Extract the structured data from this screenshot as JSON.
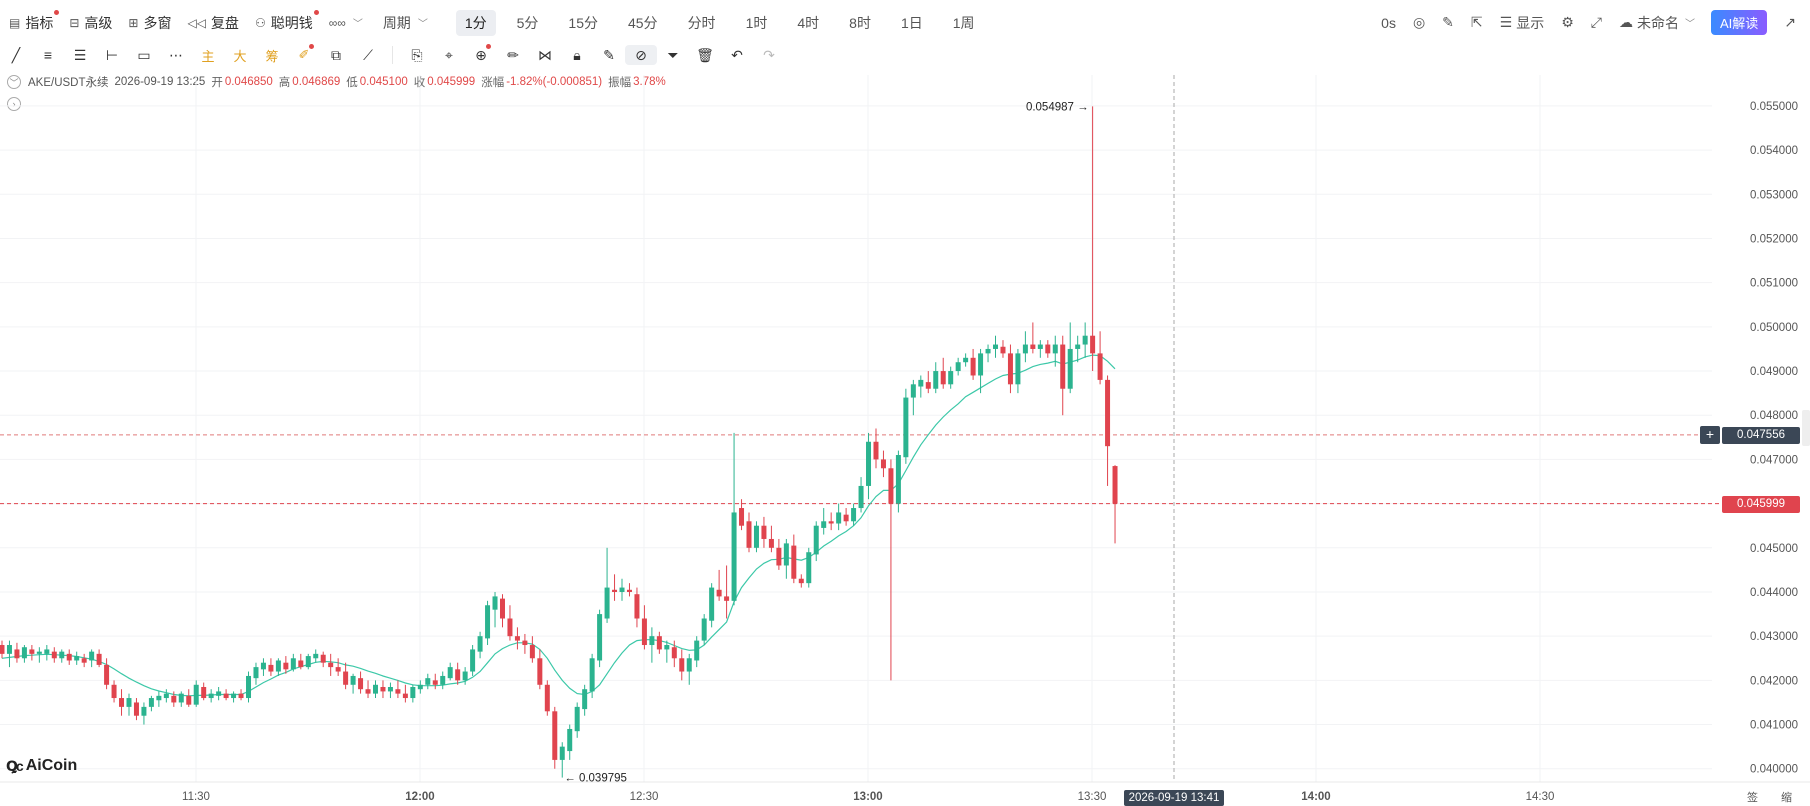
{
  "toolbar": {
    "items": [
      {
        "label": "指标",
        "icon": "indicator-icon",
        "dot": true
      },
      {
        "label": "高级",
        "icon": "advanced-icon",
        "dot": false
      },
      {
        "label": "多窗",
        "icon": "multi-window-icon",
        "dot": false
      },
      {
        "label": "复盘",
        "icon": "replay-icon",
        "dot": false
      },
      {
        "label": "聪明钱",
        "icon": "smart-money-icon",
        "dot": true
      }
    ],
    "chart_type_icon": "∞∞",
    "period_label": "周期",
    "intervals": [
      "1分",
      "5分",
      "15分",
      "45分",
      "分时",
      "1时",
      "4时",
      "8时",
      "1日",
      "1周"
    ],
    "active_interval": "1分",
    "right": {
      "countdown": "0s",
      "display_label": "显示",
      "layout_name": "未命名",
      "ai_button": "AI解读"
    }
  },
  "drawing_tools": [
    "trend-line",
    "parallel-lines",
    "multi-lines",
    "horizontal-line",
    "rectangle",
    "more-dots",
    "主",
    "大",
    "筹",
    "brush",
    "copy",
    "measure",
    "bookmark",
    "ruler",
    "zoom",
    "eraser",
    "pattern",
    "lock",
    "note",
    "magnet",
    "filter",
    "delete",
    "undo",
    "redo"
  ],
  "info": {
    "symbol": "AKE/USDT永续",
    "datetime": "2026-09-19 13:25",
    "open_label": "开",
    "open": "0.046850",
    "high_label": "高",
    "high": "0.046869",
    "low_label": "低",
    "low": "0.045100",
    "close_label": "收",
    "close": "0.045999",
    "change_label": "涨幅",
    "change": "-1.82%(-0.000851)",
    "amplitude_label": "振幅",
    "amplitude": "3.78%"
  },
  "chart_data": {
    "type": "candlestick",
    "y_range": [
      0.0397,
      0.0557
    ],
    "y_ticks": [
      "0.055000",
      "0.054000",
      "0.053000",
      "0.052000",
      "0.051000",
      "0.050000",
      "0.049000",
      "0.048000",
      "0.047000",
      "0.046000",
      "0.045000",
      "0.044000",
      "0.043000",
      "0.042000",
      "0.041000",
      "0.040000"
    ],
    "x_ticks": [
      "11:30",
      "12:00",
      "12:30",
      "13:00",
      "13:30",
      "14:00",
      "14:30"
    ],
    "max_annotation": "0.054987",
    "min_annotation": "0.039795",
    "crosshair_price": "0.047556",
    "crosshair_time": "2026-09-19 13:41",
    "last_price": "0.045999",
    "colors": {
      "up": "#2bb38f",
      "down": "#e0444e",
      "ma": "#3cc8a8"
    },
    "candles": [
      [
        0.0428,
        0.0429,
        0.0425,
        0.0426
      ],
      [
        0.0426,
        0.0429,
        0.0423,
        0.0428
      ],
      [
        0.0427,
        0.04285,
        0.0424,
        0.0425
      ],
      [
        0.0425,
        0.0428,
        0.0424,
        0.04275
      ],
      [
        0.0427,
        0.0428,
        0.04245,
        0.0426
      ],
      [
        0.0426,
        0.04275,
        0.0424,
        0.04265
      ],
      [
        0.0426,
        0.0428,
        0.04245,
        0.0427
      ],
      [
        0.04265,
        0.04275,
        0.0424,
        0.0425
      ],
      [
        0.0425,
        0.0427,
        0.0424,
        0.04265
      ],
      [
        0.0426,
        0.0427,
        0.04235,
        0.04245
      ],
      [
        0.04245,
        0.04265,
        0.04235,
        0.04255
      ],
      [
        0.0425,
        0.0426,
        0.0423,
        0.0424
      ],
      [
        0.04245,
        0.0427,
        0.0423,
        0.04265
      ],
      [
        0.0426,
        0.0427,
        0.0423,
        0.04235
      ],
      [
        0.04235,
        0.0425,
        0.0418,
        0.0419
      ],
      [
        0.0419,
        0.042,
        0.0415,
        0.0416
      ],
      [
        0.0416,
        0.0418,
        0.0412,
        0.0414
      ],
      [
        0.0414,
        0.0417,
        0.0412,
        0.0416
      ],
      [
        0.0415,
        0.0416,
        0.0411,
        0.0412
      ],
      [
        0.0412,
        0.0415,
        0.041,
        0.0414
      ],
      [
        0.0414,
        0.04165,
        0.0413,
        0.0416
      ],
      [
        0.04155,
        0.04175,
        0.0414,
        0.04165
      ],
      [
        0.0416,
        0.0418,
        0.0415,
        0.0417
      ],
      [
        0.04165,
        0.04175,
        0.0414,
        0.0415
      ],
      [
        0.0415,
        0.04175,
        0.0414,
        0.0417
      ],
      [
        0.04165,
        0.0418,
        0.0414,
        0.04145
      ],
      [
        0.04145,
        0.042,
        0.0414,
        0.0419
      ],
      [
        0.04185,
        0.04195,
        0.04155,
        0.0416
      ],
      [
        0.0416,
        0.0418,
        0.0415,
        0.0417
      ],
      [
        0.04165,
        0.04185,
        0.04155,
        0.04175
      ],
      [
        0.0417,
        0.0418,
        0.04155,
        0.0416
      ],
      [
        0.0416,
        0.04175,
        0.0415,
        0.0417
      ],
      [
        0.0417,
        0.0418,
        0.04155,
        0.0416
      ],
      [
        0.0416,
        0.0422,
        0.0415,
        0.0421
      ],
      [
        0.04205,
        0.0424,
        0.0419,
        0.0423
      ],
      [
        0.04225,
        0.0425,
        0.0421,
        0.0424
      ],
      [
        0.04235,
        0.0425,
        0.0421,
        0.0422
      ],
      [
        0.0422,
        0.0425,
        0.0421,
        0.04245
      ],
      [
        0.0424,
        0.04255,
        0.04215,
        0.04225
      ],
      [
        0.04225,
        0.0426,
        0.0422,
        0.0425
      ],
      [
        0.04245,
        0.0426,
        0.04225,
        0.0423
      ],
      [
        0.0423,
        0.0426,
        0.04225,
        0.04255
      ],
      [
        0.0425,
        0.0427,
        0.0424,
        0.0426
      ],
      [
        0.04258,
        0.04265,
        0.0423,
        0.0424
      ],
      [
        0.0424,
        0.0426,
        0.0421,
        0.0423
      ],
      [
        0.0423,
        0.0425,
        0.0421,
        0.0422
      ],
      [
        0.0422,
        0.0424,
        0.0418,
        0.0419
      ],
      [
        0.0419,
        0.04215,
        0.0417,
        0.0421
      ],
      [
        0.04205,
        0.0422,
        0.0417,
        0.0418
      ],
      [
        0.0418,
        0.042,
        0.0416,
        0.0417
      ],
      [
        0.0417,
        0.042,
        0.0416,
        0.0419
      ],
      [
        0.04185,
        0.042,
        0.0416,
        0.04175
      ],
      [
        0.04175,
        0.04195,
        0.0416,
        0.04185
      ],
      [
        0.0418,
        0.042,
        0.0416,
        0.0417
      ],
      [
        0.0417,
        0.0419,
        0.0415,
        0.0416
      ],
      [
        0.0416,
        0.0419,
        0.0415,
        0.04185
      ],
      [
        0.0418,
        0.042,
        0.0417,
        0.0419
      ],
      [
        0.0419,
        0.04215,
        0.0418,
        0.04205
      ],
      [
        0.042,
        0.04215,
        0.0418,
        0.0419
      ],
      [
        0.0419,
        0.0422,
        0.0418,
        0.0421
      ],
      [
        0.04205,
        0.0424,
        0.042,
        0.0423
      ],
      [
        0.04225,
        0.0424,
        0.0419,
        0.042
      ],
      [
        0.042,
        0.0423,
        0.0419,
        0.0422
      ],
      [
        0.0422,
        0.0428,
        0.0421,
        0.0427
      ],
      [
        0.04265,
        0.0431,
        0.0425,
        0.043
      ],
      [
        0.04295,
        0.0438,
        0.0428,
        0.0437
      ],
      [
        0.0436,
        0.044,
        0.0432,
        0.0439
      ],
      [
        0.04385,
        0.04395,
        0.0432,
        0.0434
      ],
      [
        0.0434,
        0.0437,
        0.0429,
        0.043
      ],
      [
        0.043,
        0.0432,
        0.0427,
        0.0429
      ],
      [
        0.0429,
        0.04305,
        0.0426,
        0.0428
      ],
      [
        0.0428,
        0.043,
        0.0424,
        0.0425
      ],
      [
        0.0425,
        0.0427,
        0.0418,
        0.0419
      ],
      [
        0.0419,
        0.042,
        0.0412,
        0.0413
      ],
      [
        0.0413,
        0.0414,
        0.04,
        0.0402
      ],
      [
        0.0402,
        0.0406,
        0.0398,
        0.0405
      ],
      [
        0.0404,
        0.041,
        0.0402,
        0.0409
      ],
      [
        0.04085,
        0.0415,
        0.0407,
        0.0414
      ],
      [
        0.04135,
        0.0419,
        0.0412,
        0.0418
      ],
      [
        0.04175,
        0.0426,
        0.0416,
        0.0425
      ],
      [
        0.04245,
        0.0436,
        0.0423,
        0.0435
      ],
      [
        0.0434,
        0.045,
        0.0433,
        0.0441
      ],
      [
        0.04405,
        0.0444,
        0.0438,
        0.044
      ],
      [
        0.044,
        0.0443,
        0.0438,
        0.0441
      ],
      [
        0.04405,
        0.0442,
        0.0439,
        0.044
      ],
      [
        0.04395,
        0.0441,
        0.0432,
        0.0434
      ],
      [
        0.0434,
        0.0437,
        0.0427,
        0.0428
      ],
      [
        0.0428,
        0.0432,
        0.0424,
        0.043
      ],
      [
        0.043,
        0.0431,
        0.0426,
        0.0427
      ],
      [
        0.0427,
        0.0429,
        0.0424,
        0.0428
      ],
      [
        0.04275,
        0.0429,
        0.0423,
        0.0425
      ],
      [
        0.0425,
        0.0427,
        0.042,
        0.0422
      ],
      [
        0.0422,
        0.0426,
        0.0419,
        0.0425
      ],
      [
        0.04245,
        0.043,
        0.0423,
        0.0429
      ],
      [
        0.0429,
        0.0435,
        0.0428,
        0.0434
      ],
      [
        0.04335,
        0.0442,
        0.0432,
        0.0441
      ],
      [
        0.04405,
        0.0445,
        0.0438,
        0.0439
      ],
      [
        0.0439,
        0.0446,
        0.0434,
        0.0438
      ],
      [
        0.0438,
        0.0476,
        0.0437,
        0.0458
      ],
      [
        0.0459,
        0.0461,
        0.0454,
        0.0455
      ],
      [
        0.0456,
        0.0458,
        0.0449,
        0.045
      ],
      [
        0.045,
        0.0456,
        0.0449,
        0.0455
      ],
      [
        0.0455,
        0.0457,
        0.045,
        0.0452
      ],
      [
        0.0452,
        0.0455,
        0.0449,
        0.045
      ],
      [
        0.045,
        0.0452,
        0.0445,
        0.0446
      ],
      [
        0.0446,
        0.0452,
        0.0443,
        0.0451
      ],
      [
        0.04505,
        0.0453,
        0.0442,
        0.0443
      ],
      [
        0.0443,
        0.0444,
        0.0441,
        0.0442
      ],
      [
        0.0442,
        0.045,
        0.0441,
        0.0449
      ],
      [
        0.04485,
        0.0456,
        0.0447,
        0.0455
      ],
      [
        0.04545,
        0.0459,
        0.0453,
        0.0456
      ],
      [
        0.0456,
        0.0458,
        0.0454,
        0.04555
      ],
      [
        0.04555,
        0.046,
        0.0454,
        0.0458
      ],
      [
        0.04575,
        0.0459,
        0.0455,
        0.0456
      ],
      [
        0.0456,
        0.046,
        0.0455,
        0.0459
      ],
      [
        0.0459,
        0.0466,
        0.0458,
        0.0464
      ],
      [
        0.0464,
        0.0476,
        0.0461,
        0.0474
      ],
      [
        0.0474,
        0.0477,
        0.0468,
        0.047
      ],
      [
        0.047,
        0.0472,
        0.0466,
        0.0468
      ],
      [
        0.0468,
        0.047,
        0.042,
        0.046
      ],
      [
        0.046,
        0.0472,
        0.0458,
        0.0471
      ],
      [
        0.04705,
        0.0486,
        0.0469,
        0.0484
      ],
      [
        0.0484,
        0.0488,
        0.048,
        0.0487
      ],
      [
        0.04865,
        0.0489,
        0.0484,
        0.0488
      ],
      [
        0.04875,
        0.049,
        0.0485,
        0.0486
      ],
      [
        0.0486,
        0.0492,
        0.0485,
        0.049
      ],
      [
        0.049,
        0.0493,
        0.0486,
        0.0487
      ],
      [
        0.0487,
        0.0491,
        0.0486,
        0.049
      ],
      [
        0.049,
        0.0493,
        0.0489,
        0.0492
      ],
      [
        0.0492,
        0.0494,
        0.0491,
        0.0493
      ],
      [
        0.0493,
        0.0495,
        0.0488,
        0.0489
      ],
      [
        0.0489,
        0.0495,
        0.0485,
        0.0494
      ],
      [
        0.0494,
        0.0496,
        0.0492,
        0.0495
      ],
      [
        0.0495,
        0.0498,
        0.0493,
        0.0496
      ],
      [
        0.04955,
        0.0497,
        0.0493,
        0.0494
      ],
      [
        0.0494,
        0.0496,
        0.0485,
        0.0487
      ],
      [
        0.0487,
        0.0495,
        0.0485,
        0.0494
      ],
      [
        0.0494,
        0.0499,
        0.0492,
        0.0496
      ],
      [
        0.0496,
        0.0501,
        0.0494,
        0.0495
      ],
      [
        0.0495,
        0.0497,
        0.0493,
        0.0496
      ],
      [
        0.0496,
        0.0497,
        0.0493,
        0.0494
      ],
      [
        0.0494,
        0.0498,
        0.0491,
        0.0496
      ],
      [
        0.0496,
        0.0498,
        0.048,
        0.0486
      ],
      [
        0.0486,
        0.0501,
        0.0485,
        0.0495
      ],
      [
        0.0495,
        0.0498,
        0.0492,
        0.0496
      ],
      [
        0.0496,
        0.0501,
        0.0493,
        0.0498
      ],
      [
        0.0498,
        0.05499,
        0.049,
        0.0494
      ],
      [
        0.0494,
        0.0499,
        0.0487,
        0.0488
      ],
      [
        0.0488,
        0.0489,
        0.0464,
        0.0473
      ],
      [
        0.04685,
        0.04687,
        0.0451,
        0.046
      ]
    ],
    "ma": [
      0.0425,
      0.04252,
      0.04254,
      0.04256,
      0.04257,
      0.04258,
      0.04259,
      0.04258,
      0.04257,
      0.04256,
      0.04254,
      0.04251,
      0.04248,
      0.04243,
      0.04236,
      0.04226,
      0.04215,
      0.04205,
      0.04196,
      0.04188,
      0.04181,
      0.04176,
      0.04172,
      0.04168,
      0.04166,
      0.04165,
      0.04166,
      0.04166,
      0.04167,
      0.04168,
      0.04168,
      0.04168,
      0.04168,
      0.04175,
      0.04185,
      0.04195,
      0.04203,
      0.04212,
      0.04218,
      0.04226,
      0.04231,
      0.04236,
      0.04241,
      0.04243,
      0.04242,
      0.0424,
      0.04235,
      0.04232,
      0.04227,
      0.04221,
      0.04216,
      0.0421,
      0.04205,
      0.042,
      0.04194,
      0.0419,
      0.04188,
      0.04188,
      0.04188,
      0.04189,
      0.04192,
      0.04194,
      0.04198,
      0.04207,
      0.0422,
      0.0424,
      0.0426,
      0.04272,
      0.0428,
      0.04285,
      0.04285,
      0.04282,
      0.0427,
      0.0425,
      0.04223,
      0.042,
      0.04182,
      0.0417,
      0.04168,
      0.04175,
      0.0419,
      0.04215,
      0.0424,
      0.04262,
      0.0428,
      0.0429,
      0.04292,
      0.04292,
      0.0429,
      0.04286,
      0.04279,
      0.04272,
      0.04268,
      0.04269,
      0.0428,
      0.04298,
      0.04315,
      0.04332,
      0.04378,
      0.0441,
      0.04432,
      0.04452,
      0.04465,
      0.04473,
      0.04474,
      0.04478,
      0.04475,
      0.04472,
      0.04478,
      0.0449,
      0.04504,
      0.04515,
      0.04527,
      0.04537,
      0.0455,
      0.04568,
      0.04595,
      0.04616,
      0.0463,
      0.0463,
      0.04645,
      0.04675,
      0.04705,
      0.04733,
      0.04756,
      0.04778,
      0.04796,
      0.04812,
      0.04826,
      0.04842,
      0.04852,
      0.04862,
      0.04872,
      0.04882,
      0.0489,
      0.04893,
      0.04895,
      0.04902,
      0.0491,
      0.04915,
      0.04918,
      0.04922,
      0.04916,
      0.0492,
      0.04925,
      0.04932,
      0.04936,
      0.04935,
      0.04922,
      0.04905
    ]
  },
  "footer": {
    "logo_text": "AiCoin",
    "logo_mark": "Ꝗc",
    "corner_labels": "签 缩"
  }
}
